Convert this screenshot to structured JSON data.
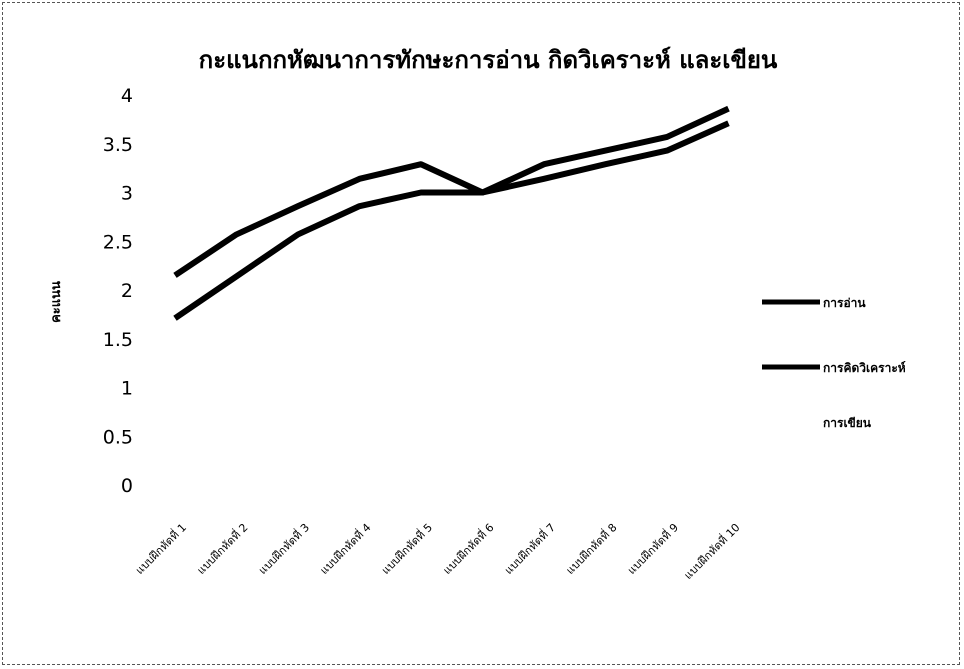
{
  "chart_data": {
    "type": "line",
    "title": "กะแนกกหัฒนาการทักษะการอ่าน กิดวิเคราะห์ และเขียน",
    "ylabel": "คะแนน",
    "xlabel": "",
    "ylim": [
      0,
      4
    ],
    "yticks": [
      "4",
      "3.5",
      "3",
      "2.5",
      "2",
      "1.5",
      "1",
      "0.5",
      "0"
    ],
    "categories": [
      "แบบฝึกหัดที่ 1",
      "แบบฝึกหัดที่ 2",
      "แบบฝึกหัดที่ 3",
      "แบบฝึกหัดที่ 4",
      "แบบฝึกหัดที่ 5",
      "แบบฝึกหัดที่ 6",
      "แบบฝึกหัดที่ 7",
      "แบบฝึกหัดที่ 8",
      "แบบฝึกหัดที่ 9",
      "แบบฝึกหัดที่ 10"
    ],
    "series": [
      {
        "name": "การอ่าน",
        "values": [
          2.15,
          2.57,
          2.86,
          3.14,
          3.29,
          3.0,
          3.29,
          3.43,
          3.57,
          3.86
        ],
        "color": "#000000"
      },
      {
        "name": "การคิดวิเคราะห์",
        "values": [
          1.71,
          2.14,
          2.57,
          2.86,
          3.0,
          3.0,
          3.14,
          3.29,
          3.43,
          3.71
        ],
        "color": "#000000"
      }
    ],
    "legend_extra_label": "การเขียน",
    "legend_position": "right",
    "grid": false
  }
}
